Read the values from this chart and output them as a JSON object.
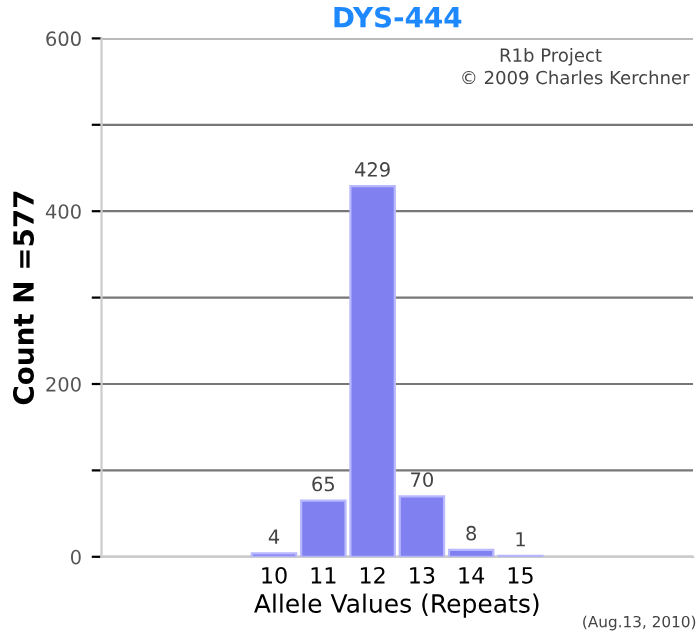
{
  "chart_data": {
    "type": "bar",
    "title": "DYS-444",
    "xlabel": "Allele Values (Repeats)",
    "ylabel": "Count N =577",
    "categories": [
      null,
      null,
      null,
      "10",
      "11",
      "12",
      "13",
      "14",
      "15",
      null,
      null,
      null
    ],
    "series": [
      {
        "color": "#8080f0",
        "values": [
          null,
          null,
          null,
          4,
          65,
          429,
          70,
          8,
          1,
          null,
          null,
          null
        ]
      }
    ],
    "ylim": [
      0,
      600
    ],
    "yticks": [
      0,
      {
        "value": 100,
        "label": null
      },
      200,
      {
        "value": 300,
        "label": null
      },
      400,
      {
        "value": 500,
        "label": null
      },
      600
    ],
    "grid": "y",
    "data_labels": true,
    "legend": false,
    "annotations": [
      "R1b Project",
      "© 2009 Charles Kerchner",
      "(Aug.13, 2010)"
    ]
  }
}
